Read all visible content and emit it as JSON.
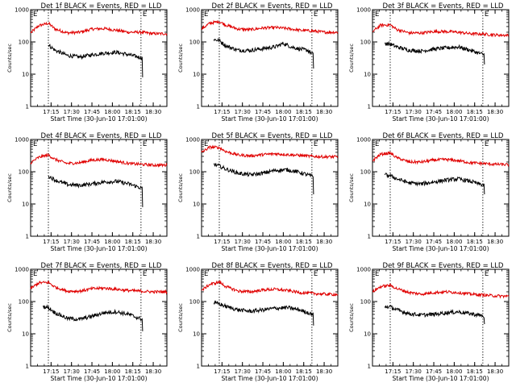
{
  "figure": {
    "legend_text": "BLACK = Events, RED = LLD",
    "flag_mark": "E",
    "colors": {
      "events": "#000000",
      "lld": "#e00000",
      "background": "#ffffff"
    }
  },
  "chart_data": [
    {
      "type": "line",
      "title": "Det 1f BLACK = Events, RED = LLD",
      "xlabel": "Start Time (30-Jun-10 17:01:00)",
      "ylabel": "Counts/sec",
      "yscale": "log",
      "ylim": [
        1,
        1000
      ],
      "yticks": [
        "1",
        "10",
        "100",
        "1000"
      ],
      "xlim": [
        17.0,
        18.667
      ],
      "xticks": [
        "17:15",
        "17:30",
        "17:45",
        "18:00",
        "18:15",
        "18:30"
      ],
      "vlines": [
        17.217,
        18.35
      ],
      "series": [
        {
          "key": "lld",
          "x": [
            17.0,
            17.1,
            17.217,
            17.3,
            17.45,
            17.6,
            17.75,
            17.9,
            18.05,
            18.2,
            18.35,
            18.5,
            18.667
          ],
          "values": [
            190,
            320,
            380,
            250,
            190,
            200,
            250,
            260,
            230,
            200,
            200,
            180,
            180
          ]
        },
        {
          "key": "events",
          "x": [
            17.217,
            17.3,
            17.45,
            17.6,
            17.75,
            17.9,
            18.05,
            18.2,
            18.3,
            18.367,
            18.37
          ],
          "values": [
            80,
            55,
            38,
            34,
            40,
            45,
            48,
            40,
            35,
            32,
            8
          ]
        }
      ]
    },
    {
      "type": "line",
      "title": "Det 2f BLACK = Events, RED = LLD",
      "xlabel": "Start Time (30-Jun-10 17:01:00)",
      "ylabel": "Counts/sec",
      "yscale": "log",
      "ylim": [
        1,
        1000
      ],
      "yticks": [
        "1",
        "10",
        "100",
        "1000"
      ],
      "xlim": [
        17.0,
        18.667
      ],
      "xticks": [
        "17:15",
        "17:30",
        "17:45",
        "18:00",
        "18:15",
        "18:30"
      ],
      "vlines": [
        17.217,
        18.35
      ],
      "series": [
        {
          "key": "lld",
          "x": [
            17.0,
            17.1,
            17.217,
            17.3,
            17.45,
            17.6,
            17.75,
            17.9,
            18.05,
            18.2,
            18.35,
            18.5,
            18.667
          ],
          "values": [
            250,
            380,
            430,
            330,
            250,
            240,
            270,
            280,
            260,
            230,
            220,
            200,
            200
          ]
        },
        {
          "key": "events",
          "x": [
            17.15,
            17.217,
            17.3,
            17.45,
            17.6,
            17.75,
            17.9,
            18.0,
            18.1,
            18.2,
            18.3,
            18.367,
            18.37
          ],
          "values": [
            120,
            110,
            75,
            55,
            55,
            62,
            70,
            90,
            70,
            60,
            55,
            40,
            15
          ]
        }
      ]
    },
    {
      "type": "line",
      "title": "Det 3f BLACK = Events, RED = LLD",
      "xlabel": "Start Time (30-Jun-10 17:01:00)",
      "ylabel": "Counts/sec",
      "yscale": "log",
      "ylim": [
        1,
        1000
      ],
      "yticks": [
        "1",
        "10",
        "100",
        "1000"
      ],
      "xlim": [
        17.0,
        18.667
      ],
      "xticks": [
        "17:15",
        "17:30",
        "17:45",
        "18:00",
        "18:15",
        "18:30"
      ],
      "vlines": [
        17.217,
        18.35
      ],
      "series": [
        {
          "key": "lld",
          "x": [
            17.0,
            17.1,
            17.217,
            17.3,
            17.45,
            17.6,
            17.75,
            17.9,
            18.05,
            18.2,
            18.35,
            18.5,
            18.667
          ],
          "values": [
            210,
            330,
            340,
            240,
            190,
            190,
            210,
            210,
            200,
            180,
            175,
            165,
            160
          ]
        },
        {
          "key": "events",
          "x": [
            17.15,
            17.217,
            17.3,
            17.45,
            17.6,
            17.75,
            17.9,
            18.05,
            18.2,
            18.3,
            18.367,
            18.37
          ],
          "values": [
            90,
            85,
            70,
            55,
            52,
            60,
            65,
            70,
            55,
            45,
            40,
            20
          ]
        }
      ]
    },
    {
      "type": "line",
      "title": "Det 4f BLACK = Events, RED = LLD",
      "xlabel": "Start Time (30-Jun-10 17:01:00)",
      "ylabel": "Counts/sec",
      "yscale": "log",
      "ylim": [
        1,
        1000
      ],
      "yticks": [
        "1",
        "10",
        "100",
        "1000"
      ],
      "xlim": [
        17.0,
        18.667
      ],
      "xticks": [
        "17:15",
        "17:30",
        "17:45",
        "18:00",
        "18:15",
        "18:30"
      ],
      "vlines": [
        17.217,
        18.35
      ],
      "series": [
        {
          "key": "lld",
          "x": [
            17.0,
            17.1,
            17.217,
            17.3,
            17.45,
            17.6,
            17.75,
            17.9,
            18.05,
            18.2,
            18.35,
            18.5,
            18.667
          ],
          "values": [
            190,
            280,
            330,
            240,
            180,
            190,
            230,
            240,
            210,
            180,
            170,
            160,
            160
          ]
        },
        {
          "key": "events",
          "x": [
            17.217,
            17.3,
            17.45,
            17.6,
            17.75,
            17.9,
            18.05,
            18.2,
            18.3,
            18.367,
            18.37
          ],
          "values": [
            75,
            55,
            40,
            38,
            42,
            48,
            50,
            42,
            35,
            30,
            8
          ]
        }
      ]
    },
    {
      "type": "line",
      "title": "Det 5f BLACK = Events, RED = LLD",
      "xlabel": "Start Time (30-Jun-10 17:01:00)",
      "ylabel": "Counts/sec",
      "yscale": "log",
      "ylim": [
        1,
        1000
      ],
      "yticks": [
        "1",
        "10",
        "100",
        "1000"
      ],
      "xlim": [
        17.0,
        18.667
      ],
      "xticks": [
        "17:15",
        "17:30",
        "17:45",
        "18:00",
        "18:15",
        "18:30"
      ],
      "vlines": [
        17.217,
        18.35
      ],
      "series": [
        {
          "key": "lld",
          "x": [
            17.0,
            17.1,
            17.217,
            17.3,
            17.45,
            17.6,
            17.75,
            17.9,
            18.05,
            18.2,
            18.35,
            18.5,
            18.667
          ],
          "values": [
            400,
            580,
            560,
            420,
            330,
            310,
            340,
            360,
            340,
            320,
            300,
            290,
            290
          ]
        },
        {
          "key": "events",
          "x": [
            17.15,
            17.217,
            17.3,
            17.45,
            17.6,
            17.75,
            17.9,
            18.05,
            18.2,
            18.3,
            18.367,
            18.37
          ],
          "values": [
            170,
            150,
            120,
            90,
            80,
            90,
            110,
            115,
            95,
            80,
            70,
            20
          ]
        }
      ]
    },
    {
      "type": "line",
      "title": "Det 6f BLACK = Events, RED = LLD",
      "xlabel": "Start Time (30-Jun-10 17:01:00)",
      "ylabel": "Counts/sec",
      "yscale": "log",
      "ylim": [
        1,
        1000
      ],
      "yticks": [
        "1",
        "10",
        "100",
        "1000"
      ],
      "xlim": [
        17.0,
        18.667
      ],
      "xticks": [
        "17:15",
        "17:30",
        "17:45",
        "18:00",
        "18:15",
        "18:30"
      ],
      "vlines": [
        17.217,
        18.35
      ],
      "series": [
        {
          "key": "lld",
          "x": [
            17.0,
            17.1,
            17.217,
            17.3,
            17.45,
            17.6,
            17.75,
            17.9,
            18.05,
            18.2,
            18.35,
            18.5,
            18.667
          ],
          "values": [
            220,
            350,
            380,
            270,
            200,
            200,
            230,
            240,
            220,
            190,
            180,
            170,
            165
          ]
        },
        {
          "key": "events",
          "x": [
            17.15,
            17.217,
            17.3,
            17.45,
            17.6,
            17.75,
            17.9,
            18.05,
            18.2,
            18.3,
            18.367,
            18.37
          ],
          "values": [
            80,
            75,
            60,
            45,
            42,
            48,
            55,
            60,
            50,
            42,
            38,
            20
          ]
        }
      ]
    },
    {
      "type": "line",
      "title": "Det 7f BLACK = Events, RED = LLD",
      "xlabel": "Start Time (30-Jun-10 17:01:00)",
      "ylabel": "Counts/sec",
      "yscale": "log",
      "ylim": [
        1,
        1000
      ],
      "yticks": [
        "1",
        "10",
        "100",
        "1000"
      ],
      "xlim": [
        17.0,
        18.667
      ],
      "xticks": [
        "17:15",
        "17:30",
        "17:45",
        "18:00",
        "18:15",
        "18:30"
      ],
      "vlines": [
        17.217,
        18.35
      ],
      "series": [
        {
          "key": "lld",
          "x": [
            17.0,
            17.1,
            17.217,
            17.3,
            17.45,
            17.6,
            17.75,
            17.9,
            18.05,
            18.2,
            18.35,
            18.5,
            18.667
          ],
          "values": [
            250,
            380,
            390,
            280,
            210,
            210,
            250,
            260,
            240,
            220,
            210,
            200,
            200
          ]
        },
        {
          "key": "events",
          "x": [
            17.15,
            17.217,
            17.3,
            17.45,
            17.6,
            17.75,
            17.9,
            18.05,
            18.2,
            18.3,
            18.367,
            18.37
          ],
          "values": [
            70,
            65,
            45,
            30,
            28,
            35,
            45,
            48,
            40,
            32,
            28,
            12
          ]
        }
      ]
    },
    {
      "type": "line",
      "title": "Det 8f BLACK = Events, RED = LLD",
      "xlabel": "Start Time (30-Jun-10 17:01:00)",
      "ylabel": "Counts/sec",
      "yscale": "log",
      "ylim": [
        1,
        1000
      ],
      "yticks": [
        "1",
        "10",
        "100",
        "1000"
      ],
      "xlim": [
        17.0,
        18.667
      ],
      "xticks": [
        "17:15",
        "17:30",
        "17:45",
        "18:00",
        "18:15",
        "18:30"
      ],
      "vlines": [
        17.217,
        18.35
      ],
      "series": [
        {
          "key": "lld",
          "x": [
            17.0,
            17.1,
            17.217,
            17.3,
            17.45,
            17.6,
            17.75,
            17.9,
            18.05,
            18.2,
            18.35,
            18.5,
            18.667
          ],
          "values": [
            220,
            340,
            400,
            290,
            210,
            200,
            230,
            240,
            220,
            190,
            180,
            170,
            165
          ]
        },
        {
          "key": "events",
          "x": [
            17.15,
            17.217,
            17.3,
            17.45,
            17.6,
            17.75,
            17.9,
            18.05,
            18.2,
            18.3,
            18.367,
            18.37
          ],
          "values": [
            90,
            85,
            70,
            55,
            50,
            55,
            62,
            65,
            55,
            45,
            40,
            18
          ]
        }
      ]
    },
    {
      "type": "line",
      "title": "Det 9f BLACK = Events, RED = LLD",
      "xlabel": "Start Time (30-Jun-10 17:01:00)",
      "ylabel": "Counts/sec",
      "yscale": "log",
      "ylim": [
        1,
        1000
      ],
      "yticks": [
        "1",
        "10",
        "100",
        "1000"
      ],
      "xlim": [
        17.0,
        18.667
      ],
      "xticks": [
        "17:15",
        "17:30",
        "17:45",
        "18:00",
        "18:15",
        "18:30"
      ],
      "vlines": [
        17.217,
        18.35
      ],
      "series": [
        {
          "key": "lld",
          "x": [
            17.0,
            17.1,
            17.217,
            17.3,
            17.45,
            17.6,
            17.75,
            17.9,
            18.05,
            18.2,
            18.35,
            18.5,
            18.667
          ],
          "values": [
            200,
            290,
            320,
            250,
            190,
            170,
            190,
            200,
            190,
            170,
            160,
            150,
            145
          ]
        },
        {
          "key": "events",
          "x": [
            17.15,
            17.217,
            17.3,
            17.45,
            17.6,
            17.75,
            17.9,
            18.05,
            18.2,
            18.3,
            18.367,
            18.37
          ],
          "values": [
            70,
            68,
            55,
            42,
            38,
            40,
            45,
            48,
            42,
            38,
            35,
            20
          ]
        }
      ]
    }
  ]
}
